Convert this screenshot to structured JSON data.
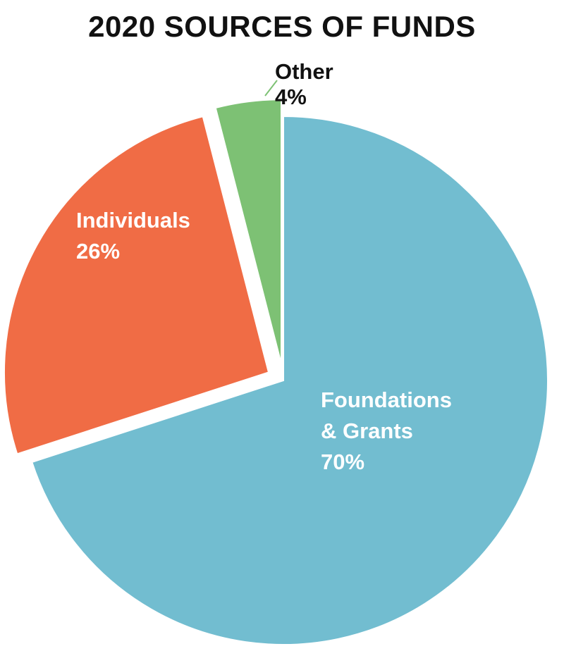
{
  "chart_data": {
    "type": "pie",
    "title": "2020 SOURCES OF FUNDS",
    "slices": [
      {
        "label_lines": [
          "Foundations",
          "& Grants"
        ],
        "value": 70,
        "value_label": "70%",
        "color": "#72bdd0",
        "label_color": "#ffffff",
        "exploded": false
      },
      {
        "label_lines": [
          "Individuals"
        ],
        "value": 26,
        "value_label": "26%",
        "color": "#f06c45",
        "label_color": "#ffffff",
        "exploded": true
      },
      {
        "label_lines": [
          "Other"
        ],
        "value": 4,
        "value_label": "4%",
        "color": "#7dc174",
        "label_color": "#111111",
        "exploded": true
      }
    ],
    "start_direction": "12 o'clock",
    "direction": "clockwise",
    "leader_line_color": "#7dc174"
  }
}
